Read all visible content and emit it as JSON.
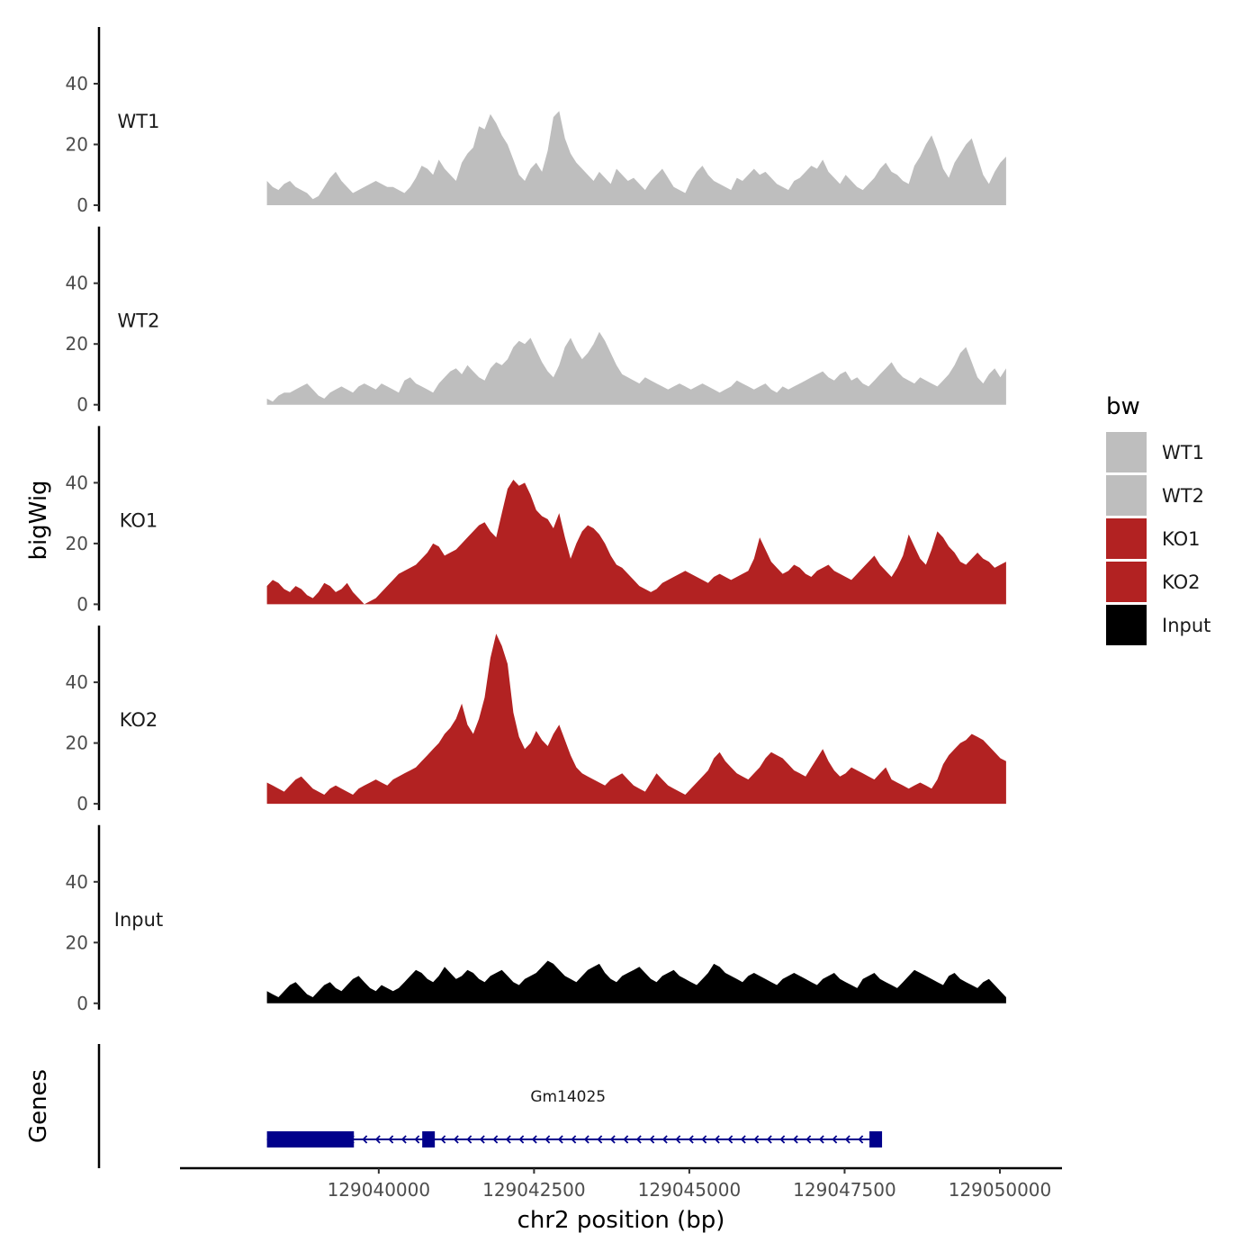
{
  "chart_data": {
    "type": "area",
    "title": "",
    "ylabel": "bigWig",
    "xlabel": "chr2 position (bp)",
    "xlim": [
      129036800,
      129051000
    ],
    "ylim": [
      0,
      58
    ],
    "x_ticks": [
      129040000,
      129042500,
      129045000,
      129047500,
      129050000
    ],
    "y_ticks": [
      0,
      20,
      40
    ],
    "legend": {
      "title": "bw",
      "position": "right",
      "entries": [
        {
          "label": "WT1",
          "color": "#BEBEBE"
        },
        {
          "label": "WT2",
          "color": "#BEBEBE"
        },
        {
          "label": "KO1",
          "color": "#B22222"
        },
        {
          "label": "KO2",
          "color": "#B22222"
        },
        {
          "label": "Input",
          "color": "#000000"
        }
      ]
    },
    "series": [
      {
        "name": "WT1",
        "color": "#BEBEBE",
        "x_start": 129038200,
        "x_end": 129050100,
        "values": [
          8,
          6,
          5,
          7,
          8,
          6,
          5,
          4,
          2,
          3,
          6,
          9,
          11,
          8,
          6,
          4,
          5,
          6,
          7,
          8,
          7,
          6,
          6,
          5,
          4,
          6,
          9,
          13,
          12,
          10,
          15,
          12,
          10,
          8,
          14,
          17,
          19,
          26,
          25,
          30,
          27,
          23,
          20,
          15,
          10,
          8,
          12,
          14,
          11,
          18,
          29,
          31,
          22,
          17,
          14,
          12,
          10,
          8,
          11,
          9,
          7,
          12,
          10,
          8,
          9,
          7,
          5,
          8,
          10,
          12,
          9,
          6,
          5,
          4,
          8,
          11,
          13,
          10,
          8,
          7,
          6,
          5,
          9,
          8,
          10,
          12,
          10,
          11,
          9,
          7,
          6,
          5,
          8,
          9,
          11,
          13,
          12,
          15,
          11,
          9,
          7,
          10,
          8,
          6,
          5,
          7,
          9,
          12,
          14,
          11,
          10,
          8,
          7,
          13,
          16,
          20,
          23,
          18,
          12,
          9,
          14,
          17,
          20,
          22,
          16,
          10,
          7,
          11,
          14,
          16
        ]
      },
      {
        "name": "WT2",
        "color": "#BEBEBE",
        "x_start": 129038200,
        "x_end": 129050100,
        "values": [
          2,
          1,
          3,
          4,
          4,
          5,
          6,
          7,
          5,
          3,
          2,
          4,
          5,
          6,
          5,
          4,
          6,
          7,
          6,
          5,
          7,
          6,
          5,
          4,
          8,
          9,
          7,
          6,
          5,
          4,
          7,
          9,
          11,
          12,
          10,
          13,
          11,
          9,
          8,
          12,
          14,
          13,
          15,
          19,
          21,
          20,
          22,
          18,
          14,
          11,
          9,
          13,
          19,
          22,
          18,
          15,
          17,
          20,
          24,
          21,
          17,
          13,
          10,
          9,
          8,
          7,
          9,
          8,
          7,
          6,
          5,
          6,
          7,
          6,
          5,
          6,
          7,
          6,
          5,
          4,
          5,
          6,
          8,
          7,
          6,
          5,
          6,
          7,
          5,
          4,
          6,
          5,
          6,
          7,
          8,
          9,
          10,
          11,
          9,
          8,
          10,
          11,
          8,
          9,
          7,
          6,
          8,
          10,
          12,
          14,
          11,
          9,
          8,
          7,
          9,
          8,
          7,
          6,
          8,
          10,
          13,
          17,
          19,
          14,
          9,
          7,
          10,
          12,
          9,
          12
        ]
      },
      {
        "name": "KO1",
        "color": "#B22222",
        "x_start": 129038200,
        "x_end": 129050100,
        "values": [
          6,
          8,
          7,
          5,
          4,
          6,
          5,
          3,
          2,
          4,
          7,
          6,
          4,
          5,
          7,
          4,
          2,
          0,
          1,
          2,
          4,
          6,
          8,
          10,
          11,
          12,
          13,
          15,
          17,
          20,
          19,
          16,
          17,
          18,
          20,
          22,
          24,
          26,
          27,
          24,
          22,
          30,
          38,
          41,
          39,
          40,
          36,
          31,
          29,
          28,
          25,
          30,
          22,
          15,
          20,
          24,
          26,
          25,
          23,
          20,
          16,
          13,
          12,
          10,
          8,
          6,
          5,
          4,
          5,
          7,
          8,
          9,
          10,
          11,
          10,
          9,
          8,
          7,
          9,
          10,
          9,
          8,
          9,
          10,
          11,
          15,
          22,
          18,
          14,
          12,
          10,
          11,
          13,
          12,
          10,
          9,
          11,
          12,
          13,
          11,
          10,
          9,
          8,
          10,
          12,
          14,
          16,
          13,
          11,
          9,
          12,
          16,
          23,
          19,
          15,
          13,
          18,
          24,
          22,
          19,
          17,
          14,
          13,
          15,
          17,
          15,
          14,
          12,
          13,
          14
        ]
      },
      {
        "name": "KO2",
        "color": "#B22222",
        "x_start": 129038200,
        "x_end": 129050100,
        "values": [
          7,
          6,
          5,
          4,
          6,
          8,
          9,
          7,
          5,
          4,
          3,
          5,
          6,
          5,
          4,
          3,
          5,
          6,
          7,
          8,
          7,
          6,
          8,
          9,
          10,
          11,
          12,
          14,
          16,
          18,
          20,
          23,
          25,
          28,
          33,
          26,
          23,
          28,
          35,
          48,
          56,
          52,
          46,
          30,
          22,
          18,
          20,
          24,
          21,
          19,
          23,
          26,
          21,
          16,
          12,
          10,
          9,
          8,
          7,
          6,
          8,
          9,
          10,
          8,
          6,
          5,
          4,
          7,
          10,
          8,
          6,
          5,
          4,
          3,
          5,
          7,
          9,
          11,
          15,
          17,
          14,
          12,
          10,
          9,
          8,
          10,
          12,
          15,
          17,
          16,
          15,
          13,
          11,
          10,
          9,
          12,
          15,
          18,
          14,
          11,
          9,
          10,
          12,
          11,
          10,
          9,
          8,
          10,
          12,
          8,
          7,
          6,
          5,
          6,
          7,
          6,
          5,
          8,
          13,
          16,
          18,
          20,
          21,
          23,
          22,
          21,
          19,
          17,
          15,
          14
        ]
      },
      {
        "name": "Input",
        "color": "#000000",
        "x_start": 129038200,
        "x_end": 129050100,
        "values": [
          4,
          3,
          2,
          4,
          6,
          7,
          5,
          3,
          2,
          4,
          6,
          7,
          5,
          4,
          6,
          8,
          9,
          7,
          5,
          4,
          6,
          5,
          4,
          5,
          7,
          9,
          11,
          10,
          8,
          7,
          9,
          12,
          10,
          8,
          9,
          11,
          10,
          8,
          7,
          9,
          10,
          11,
          9,
          7,
          6,
          8,
          9,
          10,
          12,
          14,
          13,
          11,
          9,
          8,
          7,
          9,
          11,
          12,
          13,
          10,
          8,
          7,
          9,
          10,
          11,
          12,
          10,
          8,
          7,
          9,
          10,
          11,
          9,
          8,
          7,
          6,
          8,
          10,
          13,
          12,
          10,
          9,
          8,
          7,
          9,
          10,
          9,
          8,
          7,
          6,
          8,
          9,
          10,
          9,
          8,
          7,
          6,
          8,
          9,
          10,
          8,
          7,
          6,
          5,
          8,
          9,
          10,
          8,
          7,
          6,
          5,
          7,
          9,
          11,
          10,
          9,
          8,
          7,
          6,
          9,
          10,
          8,
          7,
          6,
          5,
          7,
          8,
          6,
          4,
          2
        ]
      }
    ],
    "genes": [
      {
        "name": "Gm14025",
        "strand": "-",
        "start": 129038200,
        "end": 129048100,
        "exons": [
          [
            129038200,
            129039600
          ],
          [
            129040700,
            129040900
          ],
          [
            129047900,
            129048100
          ]
        ]
      }
    ],
    "gene_track_label": "Genes"
  }
}
